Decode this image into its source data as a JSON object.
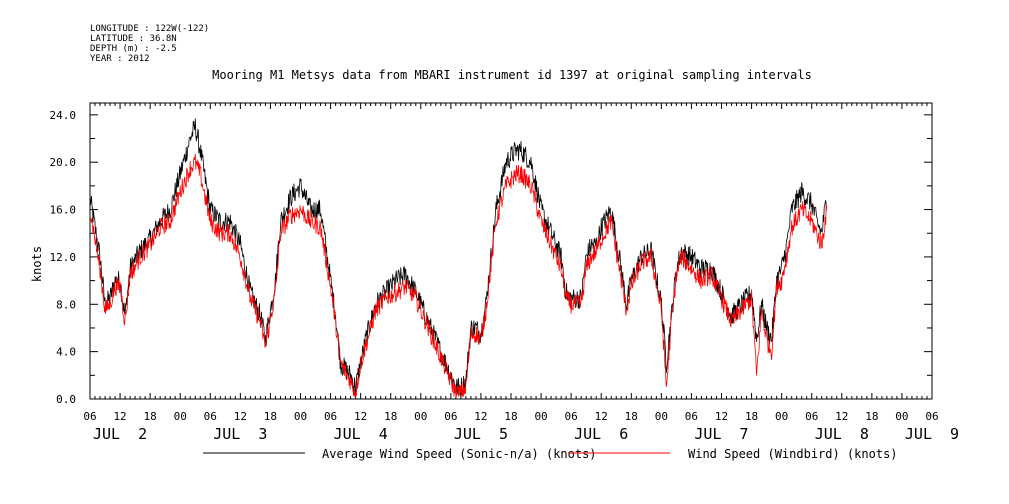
{
  "meta": {
    "longitude": "LONGITUDE : 122W(-122)",
    "latitude": "LATITUDE : 36.8N",
    "depth": "DEPTH (m) : -2.5",
    "year": "YEAR : 2012"
  },
  "chart_data": {
    "type": "line",
    "title": "Mooring M1 Metsys data from MBARI instrument id 1397 at original sampling intervals",
    "ylabel": "knots",
    "xlabel": "",
    "ylim": [
      0,
      25
    ],
    "x_range_hours": [
      0,
      168
    ],
    "y_ticks": [
      0,
      4,
      8,
      12,
      16,
      20,
      24
    ],
    "y_tick_labels": [
      "0.0",
      "4.0",
      "8.0",
      "12.0",
      "16.0",
      "20.0",
      "24.0"
    ],
    "x_hour_labels": [
      "06",
      "12",
      "18",
      "00",
      "06",
      "12",
      "18",
      "00",
      "06",
      "12",
      "18",
      "00",
      "06",
      "12",
      "18",
      "00",
      "06",
      "12",
      "18",
      "00",
      "06",
      "12",
      "18",
      "00",
      "06",
      "12",
      "18",
      "00",
      "06"
    ],
    "x_day_labels": [
      {
        "label": "JUL  2",
        "hour": 6
      },
      {
        "label": "JUL  3",
        "hour": 30
      },
      {
        "label": "JUL  4",
        "hour": 54
      },
      {
        "label": "JUL  5",
        "hour": 78
      },
      {
        "label": "JUL  6",
        "hour": 102
      },
      {
        "label": "JUL  7",
        "hour": 126
      },
      {
        "label": "JUL  8",
        "hour": 150
      },
      {
        "label": "JUL  9",
        "hour": 168
      }
    ],
    "x_units": "hours since JUL 2 06:00 2012",
    "series": [
      {
        "name": "Average Wind Speed (Sonic-n/a) (knots)",
        "color": "#000000",
        "points": [
          [
            0,
            17
          ],
          [
            2,
            12
          ],
          [
            3,
            8
          ],
          [
            4,
            8.5
          ],
          [
            5,
            10
          ],
          [
            6,
            10
          ],
          [
            7,
            7
          ],
          [
            8,
            11
          ],
          [
            10,
            12.5
          ],
          [
            12,
            13.5
          ],
          [
            14,
            15
          ],
          [
            16,
            16
          ],
          [
            18,
            19
          ],
          [
            20,
            22
          ],
          [
            21,
            23
          ],
          [
            22,
            21
          ],
          [
            24,
            16
          ],
          [
            26,
            15
          ],
          [
            28,
            15
          ],
          [
            30,
            13
          ],
          [
            32,
            9
          ],
          [
            34,
            7
          ],
          [
            35,
            5
          ],
          [
            37,
            10
          ],
          [
            38,
            15
          ],
          [
            40,
            17
          ],
          [
            42,
            18
          ],
          [
            44,
            16
          ],
          [
            46,
            16
          ],
          [
            48,
            10
          ],
          [
            49,
            7
          ],
          [
            50,
            3
          ],
          [
            52,
            2
          ],
          [
            53,
            1
          ],
          [
            54,
            3
          ],
          [
            55,
            5
          ],
          [
            57,
            8
          ],
          [
            59,
            9
          ],
          [
            61,
            10
          ],
          [
            63,
            10.5
          ],
          [
            65,
            9
          ],
          [
            67,
            7
          ],
          [
            69,
            5
          ],
          [
            70,
            4
          ],
          [
            72,
            2
          ],
          [
            73,
            1
          ],
          [
            74,
            1
          ],
          [
            75,
            1.5
          ],
          [
            76,
            6
          ],
          [
            77,
            6
          ],
          [
            78,
            5.5
          ],
          [
            79,
            8
          ],
          [
            81,
            16
          ],
          [
            83,
            20
          ],
          [
            85,
            21
          ],
          [
            86,
            21
          ],
          [
            88,
            20
          ],
          [
            90,
            16
          ],
          [
            92,
            14
          ],
          [
            94,
            12
          ],
          [
            95,
            9
          ],
          [
            96,
            8.5
          ],
          [
            98,
            8.5
          ],
          [
            99,
            12
          ],
          [
            100,
            13
          ],
          [
            101,
            13
          ],
          [
            102,
            14.5
          ],
          [
            104,
            16
          ],
          [
            106,
            11
          ],
          [
            107,
            8
          ],
          [
            108,
            10
          ],
          [
            110,
            12
          ],
          [
            112,
            12.5
          ],
          [
            114,
            8
          ],
          [
            115,
            3
          ],
          [
            116,
            7
          ],
          [
            117,
            11
          ],
          [
            118,
            12.5
          ],
          [
            120,
            12
          ],
          [
            122,
            11
          ],
          [
            124,
            11
          ],
          [
            126,
            9
          ],
          [
            128,
            7
          ],
          [
            130,
            8
          ],
          [
            132,
            9
          ],
          [
            133,
            5
          ],
          [
            134,
            8
          ],
          [
            135,
            6
          ],
          [
            136,
            5
          ],
          [
            137,
            10
          ],
          [
            138,
            11
          ],
          [
            139,
            13
          ],
          [
            140,
            16
          ],
          [
            142,
            17.5
          ],
          [
            143,
            17
          ],
          [
            144,
            16.5
          ],
          [
            145,
            15
          ],
          [
            146,
            14
          ],
          [
            147,
            17
          ]
        ]
      },
      {
        "name": "Wind Speed (Windbird) (knots)",
        "color": "#ff0000",
        "points": [
          [
            0,
            16
          ],
          [
            2,
            11
          ],
          [
            3,
            7.5
          ],
          [
            4,
            8
          ],
          [
            5,
            9.5
          ],
          [
            6,
            9.5
          ],
          [
            7,
            6.5
          ],
          [
            8,
            10.5
          ],
          [
            10,
            12
          ],
          [
            12,
            13
          ],
          [
            14,
            14.5
          ],
          [
            16,
            15
          ],
          [
            18,
            17.5
          ],
          [
            20,
            19.5
          ],
          [
            21,
            20
          ],
          [
            22,
            19
          ],
          [
            24,
            15
          ],
          [
            26,
            14
          ],
          [
            28,
            14
          ],
          [
            30,
            12
          ],
          [
            32,
            8.5
          ],
          [
            34,
            6.5
          ],
          [
            35,
            4.5
          ],
          [
            37,
            9
          ],
          [
            38,
            14
          ],
          [
            40,
            15.5
          ],
          [
            42,
            16
          ],
          [
            44,
            15
          ],
          [
            46,
            14.5
          ],
          [
            48,
            9.5
          ],
          [
            49,
            6.5
          ],
          [
            50,
            3
          ],
          [
            52,
            1.5
          ],
          [
            53,
            0.5
          ],
          [
            54,
            3
          ],
          [
            55,
            4.5
          ],
          [
            57,
            7.5
          ],
          [
            59,
            8.5
          ],
          [
            61,
            9
          ],
          [
            63,
            9.5
          ],
          [
            65,
            8.5
          ],
          [
            67,
            6.5
          ],
          [
            69,
            4.5
          ],
          [
            70,
            3.5
          ],
          [
            72,
            1.5
          ],
          [
            73,
            0.5
          ],
          [
            74,
            0.5
          ],
          [
            75,
            1
          ],
          [
            76,
            5.5
          ],
          [
            77,
            5.5
          ],
          [
            78,
            5
          ],
          [
            79,
            7.5
          ],
          [
            81,
            15
          ],
          [
            83,
            18
          ],
          [
            85,
            19
          ],
          [
            86,
            19
          ],
          [
            88,
            18
          ],
          [
            90,
            15
          ],
          [
            92,
            13
          ],
          [
            94,
            11
          ],
          [
            95,
            8.5
          ],
          [
            96,
            8
          ],
          [
            98,
            8
          ],
          [
            99,
            11
          ],
          [
            100,
            12
          ],
          [
            101,
            12.5
          ],
          [
            102,
            13.5
          ],
          [
            104,
            15
          ],
          [
            106,
            10
          ],
          [
            107,
            7.5
          ],
          [
            108,
            9.5
          ],
          [
            110,
            11.5
          ],
          [
            112,
            12
          ],
          [
            114,
            7.5
          ],
          [
            115,
            1
          ],
          [
            116,
            6.5
          ],
          [
            117,
            10.5
          ],
          [
            118,
            12
          ],
          [
            120,
            11
          ],
          [
            122,
            10
          ],
          [
            124,
            10.5
          ],
          [
            126,
            8.5
          ],
          [
            128,
            6.5
          ],
          [
            130,
            7.5
          ],
          [
            132,
            8.5
          ],
          [
            133,
            2
          ],
          [
            134,
            7.5
          ],
          [
            135,
            5
          ],
          [
            136,
            4
          ],
          [
            137,
            9.5
          ],
          [
            138,
            10
          ],
          [
            139,
            12
          ],
          [
            140,
            14.5
          ],
          [
            142,
            16
          ],
          [
            143,
            15.5
          ],
          [
            144,
            15
          ],
          [
            145,
            14
          ],
          [
            146,
            13
          ],
          [
            147,
            16
          ]
        ]
      }
    ]
  }
}
